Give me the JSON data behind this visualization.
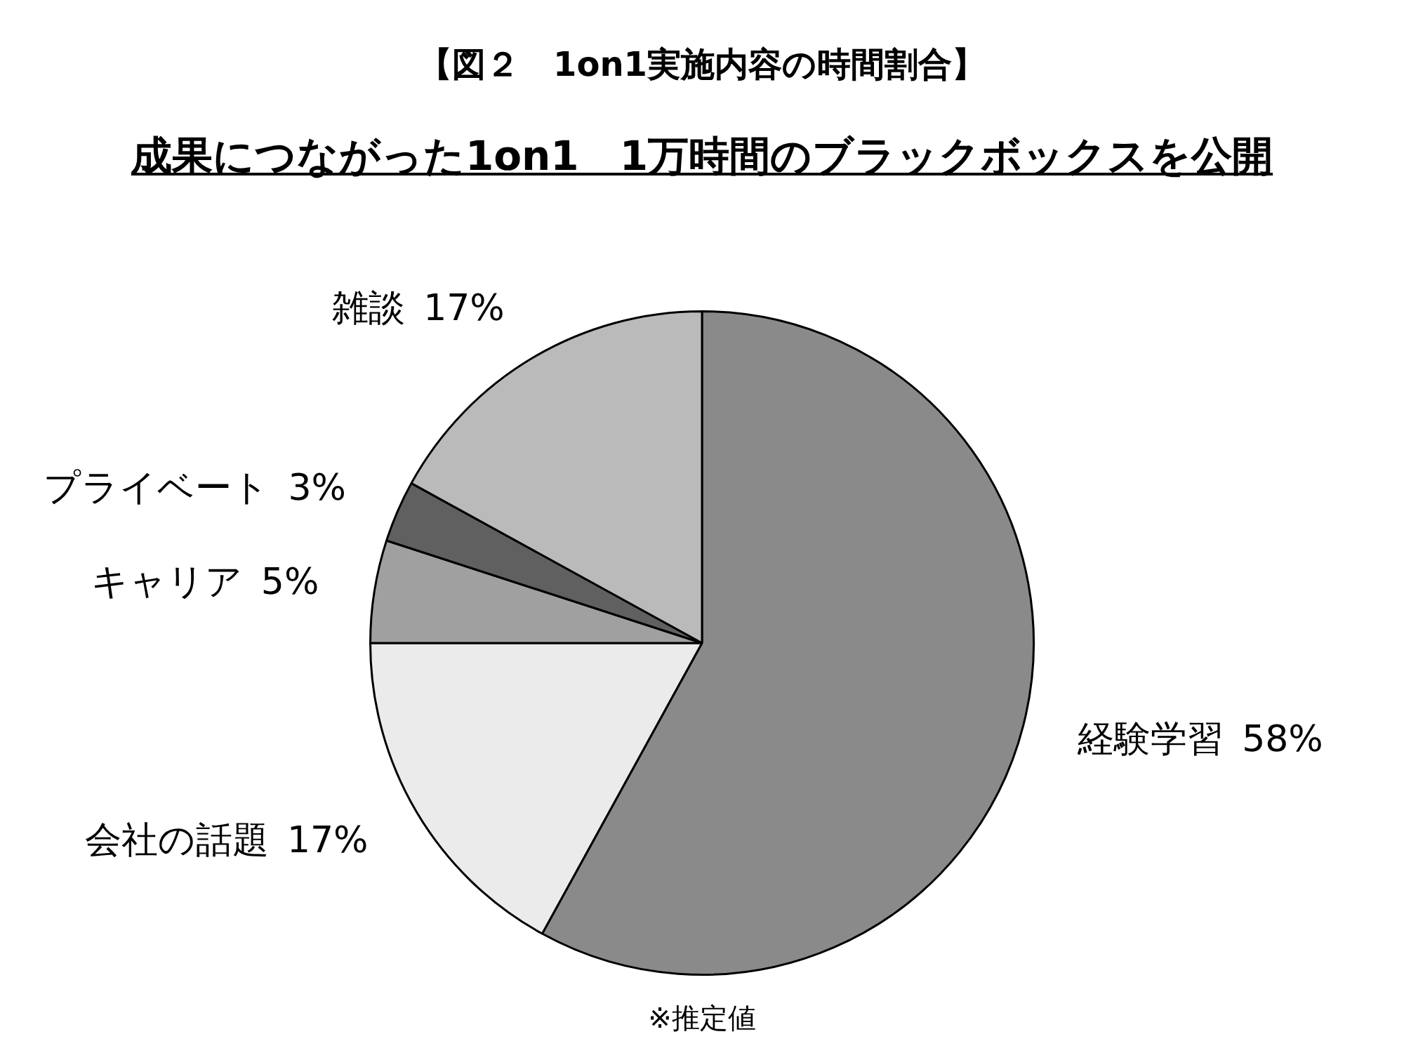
{
  "chart_data": {
    "type": "pie",
    "title": "【図２　1on1実施内容の時間割合】",
    "subtitle": "成果につながった1on1　1万時間のブラックボックスを公開",
    "categories": [
      "経験学習",
      "会社の話題",
      "キャリア",
      "プライベート",
      "雑談"
    ],
    "values": [
      58,
      17,
      5,
      3,
      17
    ],
    "value_labels": [
      "58%",
      "17%",
      "5%",
      "3%",
      "17%"
    ],
    "colors": [
      "#8a8a8a",
      "#ebebeb",
      "#a0a0a0",
      "#606060",
      "#bababa"
    ],
    "legend": false,
    "annotations": [
      "※推定値"
    ]
  }
}
